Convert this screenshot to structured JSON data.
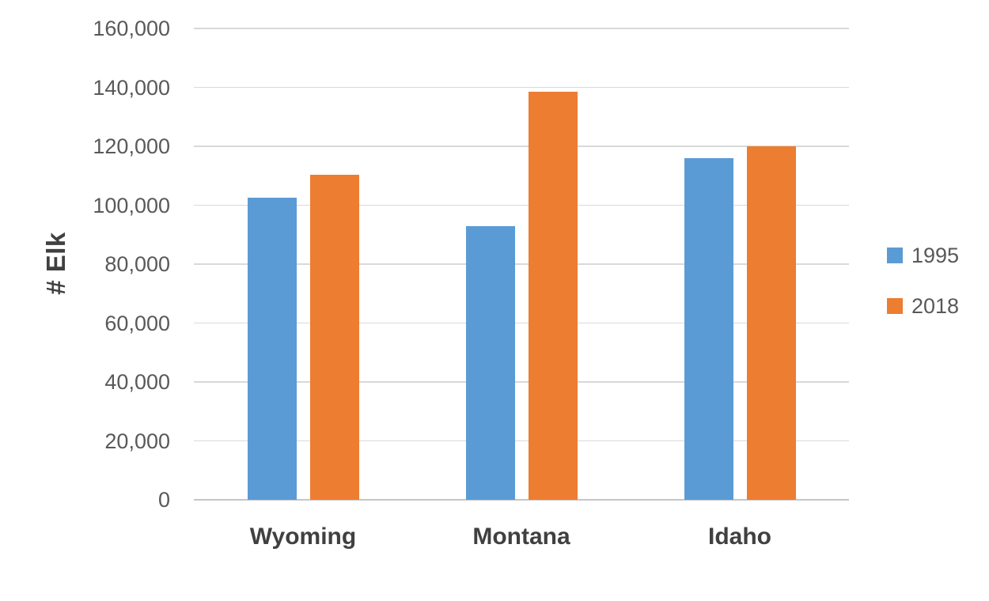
{
  "chart_data": {
    "type": "bar",
    "title": "",
    "xlabel": "",
    "ylabel": "# Elk",
    "categories": [
      "Wyoming",
      "Montana",
      "Idaho"
    ],
    "series": [
      {
        "name": "1995",
        "color": "#5B9BD5",
        "values": [
          102500,
          93000,
          116000
        ]
      },
      {
        "name": "2018",
        "color": "#ED7D31",
        "values": [
          110300,
          138500,
          120000
        ]
      }
    ],
    "ylim": [
      0,
      160000
    ],
    "ytick_step": 20000,
    "ytick_labels": [
      "0",
      "20,000",
      "40,000",
      "60,000",
      "80,000",
      "100,000",
      "120,000",
      "140,000",
      "160,000"
    ],
    "grid": true,
    "legend_position": "right",
    "colors": {
      "gridline": "#D9D9D9",
      "axis_line": "#C6C6C6",
      "tick_label": "#595959",
      "category_label": "#404040",
      "axis_title": "#404040",
      "legend_label": "#595959",
      "background": "#FFFFFF"
    }
  }
}
